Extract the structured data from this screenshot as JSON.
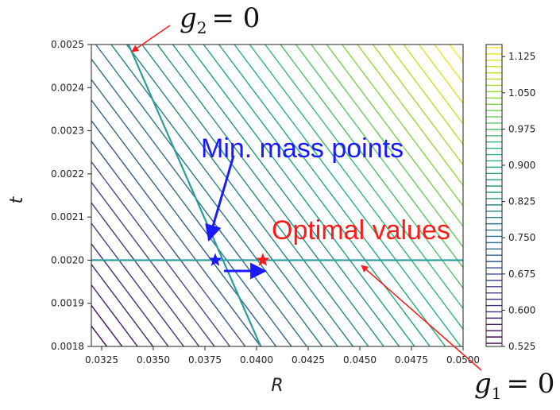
{
  "chart_data": {
    "type": "contour",
    "xlabel": "R",
    "ylabel": "t",
    "xlim": [
      0.032,
      0.05
    ],
    "ylim": [
      0.0018,
      0.0025
    ],
    "xticks": [
      "0.0325",
      "0.0350",
      "0.0375",
      "0.0400",
      "0.0425",
      "0.0450",
      "0.0475",
      "0.0500"
    ],
    "xtick_values": [
      0.0325,
      0.035,
      0.0375,
      0.04,
      0.0425,
      0.045,
      0.0475,
      0.05
    ],
    "yticks": [
      "0.0018",
      "0.0019",
      "0.0020",
      "0.0021",
      "0.0022",
      "0.0023",
      "0.0024",
      "0.0025"
    ],
    "ytick_values": [
      0.0018,
      0.0019,
      0.002,
      0.0021,
      0.0022,
      0.0023,
      0.0024,
      0.0025
    ],
    "colorbar": {
      "min": 0.525,
      "max": 1.15,
      "ticks": [
        "0.525",
        "0.600",
        "0.675",
        "0.750",
        "0.825",
        "0.900",
        "0.975",
        "1.050",
        "1.125"
      ],
      "tick_values": [
        0.525,
        0.6,
        0.675,
        0.75,
        0.825,
        0.9,
        0.975,
        1.05,
        1.125
      ],
      "colors": [
        "#440154",
        "#482878",
        "#3e4a89",
        "#31688e",
        "#26828e",
        "#1f9e89",
        "#35b779",
        "#6ece58",
        "#b5de2b",
        "#fde725"
      ]
    },
    "constraints": [
      {
        "label": "g_2 = 0",
        "points": [
          [
            0.0338,
            0.0025
          ],
          [
            0.0402,
            0.0018
          ]
        ]
      },
      {
        "label": "g_1 = 0",
        "points": [
          [
            0.032,
            0.002
          ],
          [
            0.05,
            0.002
          ]
        ]
      }
    ],
    "markers": [
      {
        "kind": "min-mass-point",
        "x": 0.038,
        "y": 0.002,
        "color": "#1a1aff"
      },
      {
        "kind": "optimal-value",
        "x": 0.0403,
        "y": 0.002,
        "color": "#ff1a1a"
      }
    ],
    "annotations": [
      {
        "text": "Min. mass points",
        "color": "#1a1aff"
      },
      {
        "text": "Optimal values",
        "color": "#ff1a1a"
      }
    ],
    "math_labels": {
      "g2": {
        "symbol": "g",
        "sub": "2",
        "rhs": "= 0"
      },
      "g1": {
        "symbol": "g",
        "sub": "1",
        "rhs": "= 0"
      }
    }
  }
}
